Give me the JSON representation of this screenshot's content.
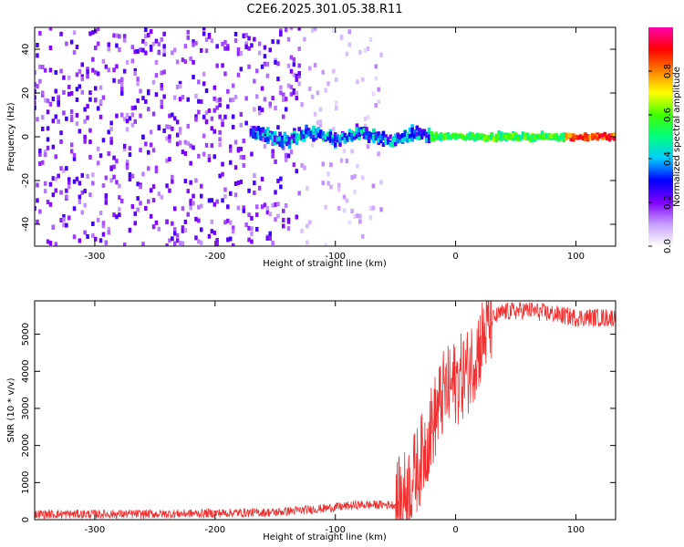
{
  "title": "C2E6.2025.301.05.38.R11",
  "chart_data": [
    {
      "type": "heatmap",
      "xlabel": "Height of straight line (km)",
      "ylabel": "Frequency (Hz)",
      "xlim": [
        -350,
        133
      ],
      "ylim": [
        -50,
        50
      ],
      "xticks": [
        -300,
        -200,
        -100,
        0,
        100
      ],
      "yticks": [
        -40,
        -20,
        0,
        20,
        40
      ],
      "colorbar": {
        "label": "Normalized spectral amplitude",
        "range": [
          0,
          1
        ],
        "ticks": [
          "0.0",
          "0.2",
          "0.4",
          "0.6",
          "0.8"
        ],
        "tick_values": [
          0.0,
          0.2,
          0.4,
          0.6,
          0.8
        ],
        "colormap": [
          "#ffffff",
          "#c8a0ff",
          "#8000ff",
          "#0000ff",
          "#00ccff",
          "#00ff80",
          "#40ff00",
          "#ffff00",
          "#ff8000",
          "#ff0000",
          "#ff00aa"
        ]
      },
      "features": {
        "noise_floor_region": [
          -350,
          -60
        ],
        "signal_track_start": -170,
        "signal_track_center_freq": 0,
        "dense_noise_boundary": -130
      }
    },
    {
      "type": "line",
      "xlabel": "Height of straight line (km)",
      "ylabel": "SNR (10 * v/v)",
      "xlim": [
        -350,
        133
      ],
      "ylim": [
        0,
        5900
      ],
      "xticks": [
        -300,
        -200,
        -100,
        0,
        100
      ],
      "yticks": [
        0,
        1000,
        2000,
        3000,
        4000,
        5000
      ],
      "color": "#f03030",
      "profile_x": [
        -350,
        -250,
        -150,
        -110,
        -80,
        -50,
        -40,
        -30,
        -20,
        -10,
        0,
        10,
        20,
        30,
        40,
        60,
        80,
        100,
        133
      ],
      "profile_y": [
        150,
        150,
        200,
        300,
        400,
        400,
        800,
        1500,
        2500,
        3400,
        3700,
        4000,
        4700,
        5400,
        5600,
        5650,
        5550,
        5450,
        5450
      ]
    }
  ]
}
